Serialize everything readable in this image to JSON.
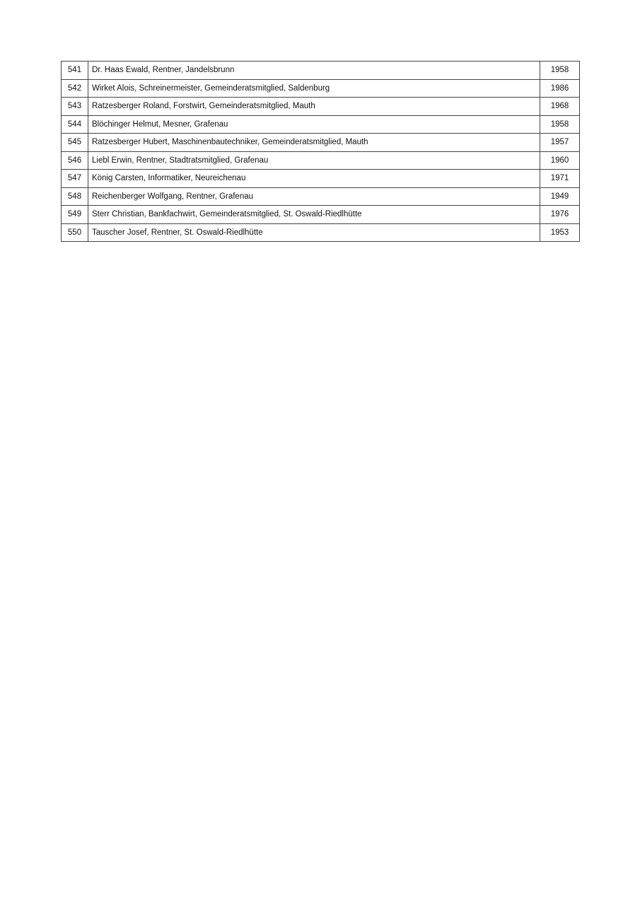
{
  "rows": [
    {
      "no": "541",
      "text": "Dr. Haas Ewald, Rentner, Jandelsbrunn",
      "year": "1958"
    },
    {
      "no": "542",
      "text": "Wirket Alois, Schreinermeister, Gemeinderatsmitglied, Saldenburg",
      "year": "1986"
    },
    {
      "no": "543",
      "text": "Ratzesberger Roland, Forstwirt, Gemeinderatsmitglied, Mauth",
      "year": "1968"
    },
    {
      "no": "544",
      "text": "Blöchinger Helmut, Mesner, Grafenau",
      "year": "1958"
    },
    {
      "no": "545",
      "text": "Ratzesberger Hubert, Maschinenbautechniker, Gemeinderatsmitglied, Mauth",
      "year": "1957"
    },
    {
      "no": "546",
      "text": "Liebl Erwin, Rentner, Stadtratsmitglied, Grafenau",
      "year": "1960"
    },
    {
      "no": "547",
      "text": "König Carsten, Informatiker, Neureichenau",
      "year": "1971"
    },
    {
      "no": "548",
      "text": "Reichenberger Wolfgang, Rentner, Grafenau",
      "year": "1949"
    },
    {
      "no": "549",
      "text": "Sterr Christian, Bankfachwirt, Gemeinderatsmitglied, St. Oswald-Riedlhütte",
      "year": "1976"
    },
    {
      "no": "550",
      "text": "Tauscher Josef, Rentner, St. Oswald-Riedlhütte",
      "year": "1953"
    }
  ]
}
